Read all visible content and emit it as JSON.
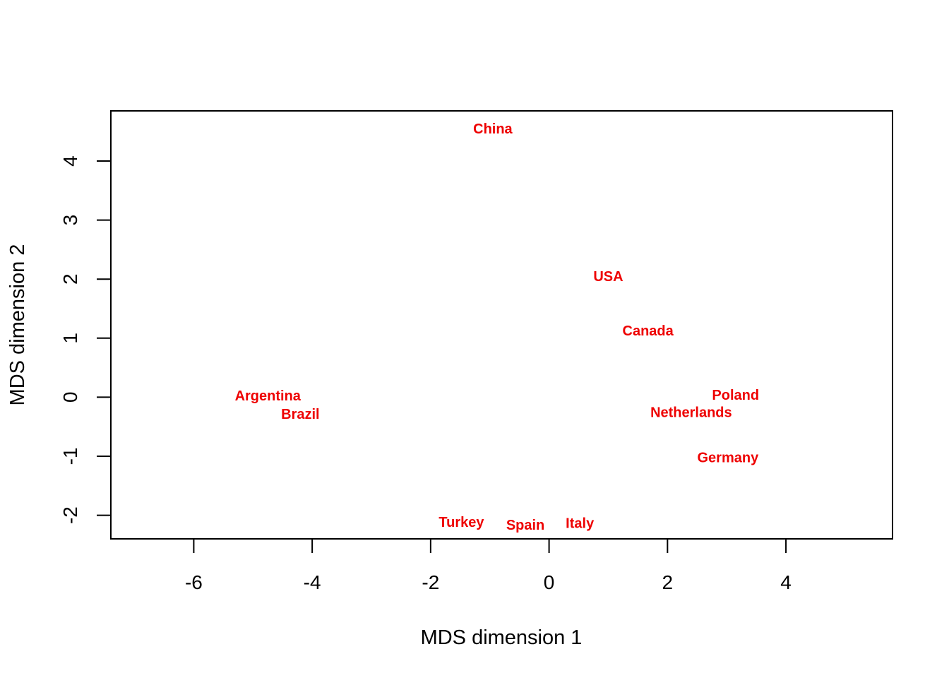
{
  "chart_data": {
    "type": "scatter",
    "title": "",
    "xlabel": "MDS dimension 1",
    "ylabel": "MDS dimension 2",
    "xlim": [
      -7.4,
      5.8
    ],
    "ylim": [
      -2.4,
      4.85
    ],
    "x_ticks": [
      -6,
      -4,
      -2,
      0,
      2,
      4
    ],
    "y_ticks": [
      -2,
      -1,
      0,
      1,
      2,
      3,
      4
    ],
    "grid": false,
    "label_color": "#ee0000",
    "points": [
      {
        "label": "China",
        "x": -0.95,
        "y": 4.55
      },
      {
        "label": "USA",
        "x": 1.0,
        "y": 2.05
      },
      {
        "label": "Canada",
        "x": 1.67,
        "y": 1.13
      },
      {
        "label": "Argentina",
        "x": -4.75,
        "y": 0.03
      },
      {
        "label": "Brazil",
        "x": -4.2,
        "y": -0.28
      },
      {
        "label": "Poland",
        "x": 3.15,
        "y": 0.04
      },
      {
        "label": "Netherlands",
        "x": 2.4,
        "y": -0.25
      },
      {
        "label": "Germany",
        "x": 3.02,
        "y": -1.02
      },
      {
        "label": "Turkey",
        "x": -1.48,
        "y": -2.11
      },
      {
        "label": "Spain",
        "x": -0.4,
        "y": -2.16
      },
      {
        "label": "Italy",
        "x": 0.52,
        "y": -2.13
      }
    ]
  }
}
